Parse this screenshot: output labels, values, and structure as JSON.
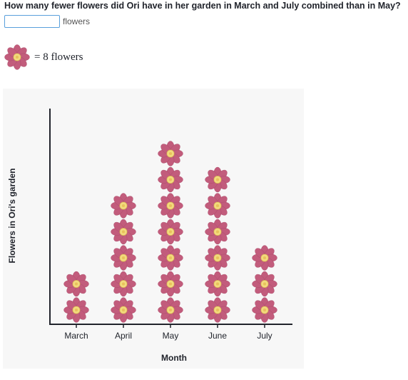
{
  "question": {
    "text": "How many fewer flowers did Ori have in her garden in March and July combined than in May?"
  },
  "answer": {
    "value": "",
    "placeholder": "",
    "unit": "flowers"
  },
  "key": {
    "icon": "flower-icon",
    "equals": "=",
    "value": "8",
    "unit": "flowers"
  },
  "colors": {
    "petal": "#c25c7c",
    "petal_dark": "#a84866",
    "center": "#f2d97e",
    "chart_bg": "#f7f7f7",
    "axis": "#21242c"
  },
  "chart_data": {
    "type": "pictograph",
    "title": "",
    "xlabel": "Month",
    "ylabel": "Flowers in Ori's garden",
    "categories": [
      "March",
      "April",
      "May",
      "June",
      "July"
    ],
    "icon_value": 8,
    "icon_counts": [
      2,
      5,
      7,
      6,
      3
    ],
    "values": [
      16,
      40,
      56,
      48,
      24
    ],
    "grid": false,
    "legend": "none"
  }
}
